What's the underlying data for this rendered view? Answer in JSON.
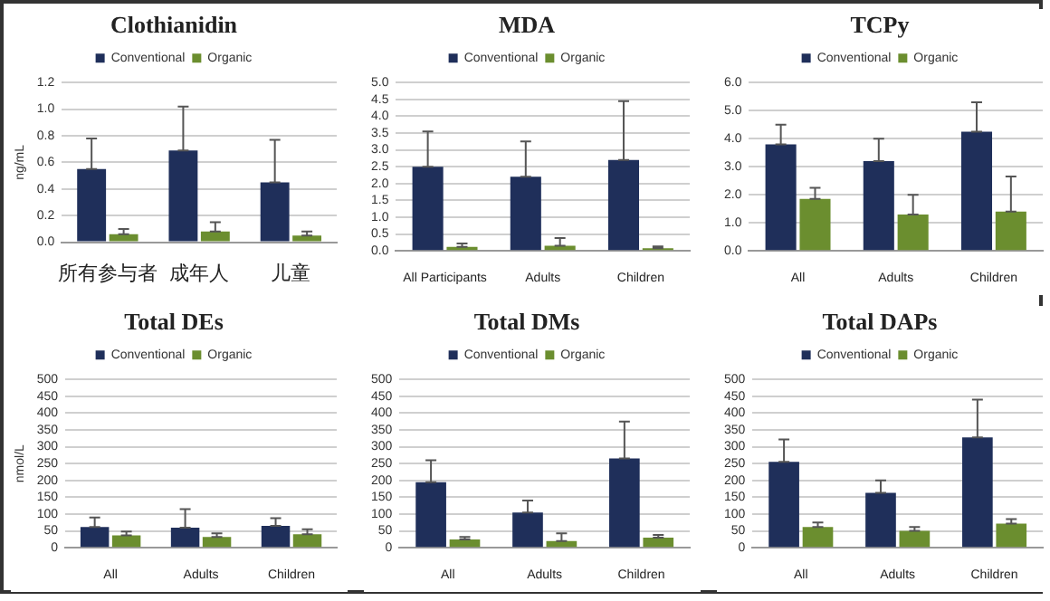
{
  "chart_data": [
    {
      "type": "bar",
      "title": "Clothianidin",
      "ylabel": "ng/mL",
      "categories": [
        "所有参与者",
        "成年人",
        "儿童"
      ],
      "series": [
        {
          "name": "Conventional",
          "color": "#1f2f5a",
          "values": [
            0.55,
            0.69,
            0.45
          ],
          "errors": [
            [
              0.55,
              0.78
            ],
            [
              0.69,
              1.02
            ],
            [
              0.45,
              0.77
            ]
          ]
        },
        {
          "name": "Organic",
          "color": "#6b8e2f",
          "values": [
            0.06,
            0.08,
            0.05
          ],
          "errors": [
            [
              0.06,
              0.1
            ],
            [
              0.08,
              0.15
            ],
            [
              0.05,
              0.08
            ]
          ]
        }
      ],
      "ylim": [
        0,
        1.2
      ],
      "yticks": [
        {
          "value": 0,
          "label": "0.0"
        },
        0.2,
        0.4,
        0.6,
        0.8,
        {
          "value": 1,
          "label": "1.0"
        },
        1.2
      ],
      "grid": "y",
      "legend": "top"
    },
    {
      "type": "bar",
      "title": "MDA",
      "categories": [
        "All Participants",
        "Adults",
        "Children"
      ],
      "series": [
        {
          "name": "Conventional",
          "color": "#1f2f5a",
          "values": [
            2.5,
            2.2,
            2.7
          ],
          "errors": [
            [
              2.5,
              3.55
            ],
            [
              2.2,
              3.25
            ],
            [
              2.7,
              4.45
            ]
          ]
        },
        {
          "name": "Organic",
          "color": "#6b8e2f",
          "values": [
            0.12,
            0.15,
            0.08
          ],
          "errors": [
            [
              0.12,
              0.22
            ],
            [
              0.15,
              0.38
            ],
            [
              0.08,
              0.13
            ]
          ]
        }
      ],
      "ylim": [
        0,
        5
      ],
      "yticks": [
        {
          "value": 0,
          "label": "0.0"
        },
        0.5,
        {
          "value": 1,
          "label": "1.0"
        },
        1.5,
        {
          "value": 2,
          "label": "2.0"
        },
        2.5,
        {
          "value": 3,
          "label": "3.0"
        },
        3.5,
        {
          "value": 4,
          "label": "4.0"
        },
        4.5,
        {
          "value": 5,
          "label": "5.0"
        }
      ],
      "grid": "y",
      "legend": "top"
    },
    {
      "type": "bar",
      "title": "TCPy",
      "categories": [
        "All",
        "Adults",
        "Children"
      ],
      "series": [
        {
          "name": "Conventional",
          "color": "#1f2f5a",
          "values": [
            3.8,
            3.2,
            4.25
          ],
          "errors": [
            [
              3.8,
              4.5
            ],
            [
              3.2,
              4.0
            ],
            [
              4.25,
              5.3
            ]
          ]
        },
        {
          "name": "Organic",
          "color": "#6b8e2f",
          "values": [
            1.85,
            1.3,
            1.4
          ],
          "errors": [
            [
              1.85,
              2.25
            ],
            [
              1.3,
              2.0
            ],
            [
              1.4,
              2.65
            ]
          ]
        }
      ],
      "ylim": [
        0,
        6
      ],
      "yticks": [
        {
          "value": 0,
          "label": "0.0"
        },
        {
          "value": 1,
          "label": "1.0"
        },
        {
          "value": 2,
          "label": "2.0"
        },
        {
          "value": 3,
          "label": "3.0"
        },
        {
          "value": 4,
          "label": "4.0"
        },
        {
          "value": 5,
          "label": "5.0"
        },
        {
          "value": 6,
          "label": "6.0"
        }
      ],
      "grid": "y",
      "legend": "top"
    },
    {
      "type": "bar",
      "title": "Total DEs",
      "ylabel": "nmol/L",
      "categories": [
        "All",
        "Adults",
        "Children"
      ],
      "series": [
        {
          "name": "Conventional",
          "color": "#1f2f5a",
          "values": [
            62,
            60,
            65
          ],
          "errors": [
            [
              62,
              90
            ],
            [
              60,
              115
            ],
            [
              65,
              88
            ]
          ]
        },
        {
          "name": "Organic",
          "color": "#6b8e2f",
          "values": [
            37,
            32,
            40
          ],
          "errors": [
            [
              37,
              48
            ],
            [
              32,
              43
            ],
            [
              40,
              55
            ]
          ]
        }
      ],
      "ylim": [
        0,
        500
      ],
      "yticks": [
        0,
        50,
        100,
        150,
        200,
        250,
        300,
        350,
        400,
        450,
        500
      ],
      "grid": "y",
      "legend": "top"
    },
    {
      "type": "bar",
      "title": "Total DMs",
      "categories": [
        "All",
        "Adults",
        "Children"
      ],
      "series": [
        {
          "name": "Conventional",
          "color": "#1f2f5a",
          "values": [
            195,
            105,
            265
          ],
          "errors": [
            [
              195,
              260
            ],
            [
              105,
              140
            ],
            [
              265,
              375
            ]
          ]
        },
        {
          "name": "Organic",
          "color": "#6b8e2f",
          "values": [
            25,
            20,
            30
          ],
          "errors": [
            [
              25,
              32
            ],
            [
              20,
              43
            ],
            [
              30,
              38
            ]
          ]
        }
      ],
      "ylim": [
        0,
        500
      ],
      "yticks": [
        0,
        50,
        100,
        150,
        200,
        250,
        300,
        350,
        400,
        450,
        500
      ],
      "grid": "y",
      "legend": "top"
    },
    {
      "type": "bar",
      "title": "Total DAPs",
      "categories": [
        "All",
        "Adults",
        "Children"
      ],
      "series": [
        {
          "name": "Conventional",
          "color": "#1f2f5a",
          "values": [
            255,
            163,
            328
          ],
          "errors": [
            [
              255,
              322
            ],
            [
              163,
              200
            ],
            [
              328,
              440
            ]
          ]
        },
        {
          "name": "Organic",
          "color": "#6b8e2f",
          "values": [
            62,
            50,
            72
          ],
          "errors": [
            [
              62,
              75
            ],
            [
              50,
              62
            ],
            [
              72,
              85
            ]
          ]
        }
      ],
      "ylim": [
        0,
        500
      ],
      "yticks": [
        0,
        50,
        100,
        150,
        200,
        250,
        300,
        350,
        400,
        450,
        500
      ],
      "grid": "y",
      "legend": "top"
    }
  ]
}
